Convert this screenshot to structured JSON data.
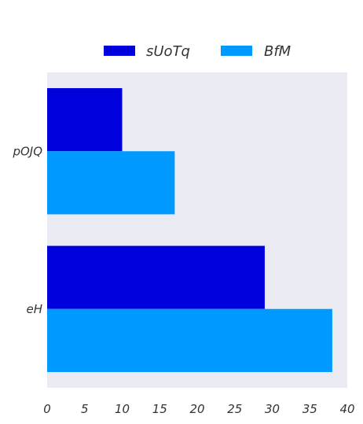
{
  "chart_data": {
    "type": "bar",
    "orientation": "horizontal",
    "categories": [
      "pOJQ",
      "eH"
    ],
    "series": [
      {
        "name": "sUoTq",
        "color": "#0000dd",
        "values": [
          10,
          29
        ]
      },
      {
        "name": "BfM",
        "color": "#0099ff",
        "values": [
          17,
          38
        ]
      }
    ],
    "xlim": [
      0,
      40
    ],
    "xticks": [
      0,
      5,
      10,
      15,
      20,
      25,
      30,
      35,
      40
    ],
    "title": "",
    "xlabel": "",
    "ylabel": "",
    "legend_position": "top-center",
    "grid": false,
    "plot_background": "#eaeaf2"
  }
}
